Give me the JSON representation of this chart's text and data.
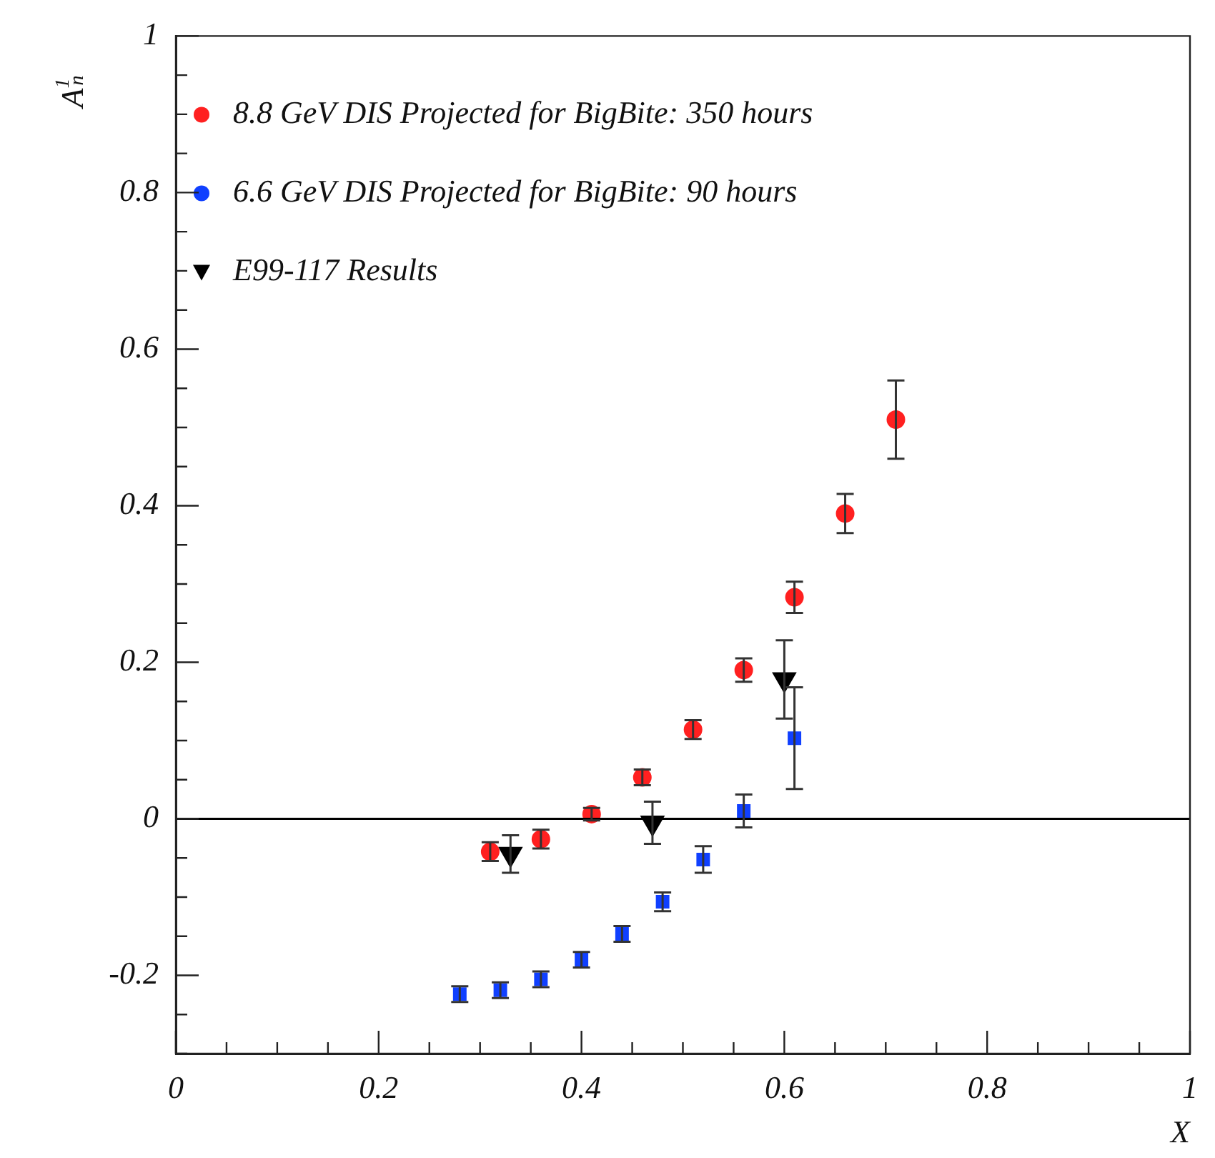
{
  "chart_data": {
    "type": "scatter",
    "xlabel": "X",
    "ylabel": "A$^{1}$$_{n}$",
    "xlim": [
      0,
      1
    ],
    "ylim": [
      -0.3,
      1
    ],
    "xticks": [
      0,
      {
        "value": 0.05,
        "label": null
      },
      {
        "value": 0.1,
        "label": null
      },
      {
        "value": 0.15,
        "label": null
      },
      0.2,
      {
        "value": 0.25,
        "label": null
      },
      {
        "value": 0.3,
        "label": null
      },
      {
        "value": 0.35,
        "label": null
      },
      0.4,
      {
        "value": 0.45,
        "label": null
      },
      {
        "value": 0.5,
        "label": null
      },
      {
        "value": 0.55,
        "label": null
      },
      0.6,
      {
        "value": 0.65,
        "label": null
      },
      {
        "value": 0.7,
        "label": null
      },
      {
        "value": 0.75,
        "label": null
      },
      0.8,
      {
        "value": 0.85,
        "label": null
      },
      {
        "value": 0.9,
        "label": null
      },
      {
        "value": 0.95,
        "label": null
      },
      1
    ],
    "yticks": [
      {
        "value": -0.3,
        "label": null
      },
      {
        "value": -0.25,
        "label": null
      },
      -0.2,
      {
        "value": -0.15,
        "label": null
      },
      {
        "value": -0.1,
        "label": null
      },
      {
        "value": -0.05,
        "label": null
      },
      0,
      {
        "value": 0.05,
        "label": null
      },
      {
        "value": 0.1,
        "label": null
      },
      {
        "value": 0.15,
        "label": null
      },
      0.2,
      {
        "value": 0.25,
        "label": null
      },
      {
        "value": 0.3,
        "label": null
      },
      {
        "value": 0.35,
        "label": null
      },
      0.4,
      {
        "value": 0.45,
        "label": null
      },
      {
        "value": 0.5,
        "label": null
      },
      {
        "value": 0.55,
        "label": null
      },
      0.6,
      {
        "value": 0.65,
        "label": null
      },
      {
        "value": 0.7,
        "label": null
      },
      {
        "value": 0.75,
        "label": null
      },
      0.8,
      {
        "value": 0.85,
        "label": null
      },
      {
        "value": 0.9,
        "label": null
      },
      {
        "value": 0.95,
        "label": null
      },
      1
    ],
    "grid": false,
    "legend": "top left",
    "ref_lines": [
      {
        "axis": "y",
        "value": 0,
        "color": "#000000"
      }
    ],
    "series": [
      {
        "name": "8.8 GeV DIS Projected for BigBite: 350 hours",
        "color": "#ff2020",
        "marker": "circle",
        "x": [
          0.31,
          0.36,
          0.41,
          0.46,
          0.51,
          0.56,
          0.61,
          0.66,
          0.71
        ],
        "values": [
          -0.042,
          -0.026,
          0.006,
          0.053,
          0.114,
          0.19,
          0.283,
          0.39,
          0.51
        ],
        "errors": [
          0.012,
          0.012,
          0.008,
          0.01,
          0.012,
          0.015,
          0.02,
          0.025,
          0.05
        ]
      },
      {
        "name": "6.6 GeV DIS Projected for BigBite: 90 hours",
        "color": "#1040ff",
        "marker": "square",
        "x": [
          0.28,
          0.32,
          0.36,
          0.4,
          0.44,
          0.48,
          0.52,
          0.56,
          0.61
        ],
        "values": [
          -0.224,
          -0.219,
          -0.205,
          -0.18,
          -0.147,
          -0.106,
          -0.052,
          0.01,
          0.103
        ],
        "errors": [
          0.01,
          0.01,
          0.01,
          0.01,
          0.01,
          0.012,
          0.017,
          0.021,
          0.065
        ]
      },
      {
        "name": "E99-117 Results",
        "color": "#000000",
        "marker": "triangle",
        "x": [
          0.33,
          0.47,
          0.6
        ],
        "values": [
          -0.045,
          -0.005,
          0.178
        ],
        "errors": [
          0.024,
          0.027,
          0.05
        ]
      }
    ]
  }
}
